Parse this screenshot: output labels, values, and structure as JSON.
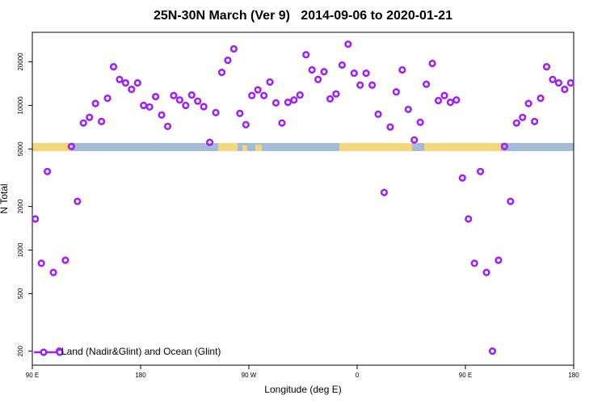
{
  "chart_data": {
    "type": "scatter",
    "title": "25N-30N March (Ver 9)   2014-09-06 to 2020-01-21",
    "x_label": "Longitude (deg E)",
    "y_label": "N Total",
    "yscale": "log",
    "legend": "lower left",
    "xlim": [
      90,
      540
    ],
    "ylim": [
      160,
      32000
    ],
    "xticks": [
      {
        "value": 90,
        "label": "90 E"
      },
      {
        "value": 180,
        "label": "180"
      },
      {
        "value": 270,
        "label": "90 W"
      },
      {
        "value": 360,
        "label": "0"
      },
      {
        "value": 450,
        "label": "90 E"
      },
      {
        "value": 540,
        "label": "180"
      }
    ],
    "yticks": [
      200,
      500,
      1000,
      2000,
      5000,
      10000,
      20000
    ],
    "series": [
      {
        "name": "Land (Nadir&Glint) and Ocean (Glint)",
        "color": "#a020f0",
        "x": [
          92.5,
          97.5,
          102.5,
          107.5,
          112.5,
          117.5,
          122.5,
          127.5,
          132.5,
          137.5,
          142.5,
          147.5,
          152.5,
          157.5,
          162.5,
          167.5,
          172.5,
          177.5,
          182.5,
          187.5,
          192.5,
          197.5,
          202.5,
          207.5,
          212.5,
          217.5,
          222.5,
          227.5,
          232.5,
          237.5,
          242.5,
          247.5,
          252.5,
          257.5,
          262.5,
          267.5,
          272.5,
          277.5,
          282.5,
          287.5,
          292.5,
          297.5,
          302.5,
          307.5,
          312.5,
          317.5,
          322.5,
          327.5,
          332.5,
          337.5,
          342.5,
          347.5,
          352.5,
          357.5,
          362.5,
          367.5,
          372.5,
          377.5,
          382.5,
          387.5,
          392.5,
          397.5,
          402.5,
          407.5,
          412.5,
          417.5,
          422.5,
          427.5,
          432.5,
          437.5,
          442.5,
          447.5,
          452.5,
          457.5,
          462.5,
          467.5,
          472.5,
          477.5,
          482.5,
          487.5,
          492.5,
          497.5,
          502.5,
          507.5,
          512.5,
          517.5,
          522.5,
          527.5,
          532.5,
          537.5
        ],
        "values": [
          1640,
          810,
          3490,
          700,
          200,
          850,
          5200,
          2170,
          7550,
          8260,
          10300,
          7740,
          11200,
          18500,
          15100,
          14300,
          12900,
          14300,
          10000,
          9750,
          11500,
          8580,
          7160,
          11700,
          10900,
          10000,
          11800,
          10700,
          9800,
          5550,
          8910,
          16900,
          20500,
          24600,
          8800,
          7350,
          11700,
          12800,
          11700,
          14500,
          10400,
          7550,
          10500,
          10900,
          11800,
          22400,
          17600,
          15100,
          17100,
          11100,
          12000,
          19000,
          26500,
          16700,
          13800,
          16700,
          13800,
          8690,
          2500,
          7080,
          12400,
          17600,
          9380,
          5770,
          7640,
          14000,
          19500,
          10800,
          11700,
          10500,
          10900,
          3150,
          1640,
          810,
          3490,
          700,
          200,
          850,
          5200,
          2170,
          7550,
          8260,
          10300,
          7740,
          11200,
          18500,
          15100,
          14300,
          12900,
          14300
        ]
      }
    ]
  }
}
